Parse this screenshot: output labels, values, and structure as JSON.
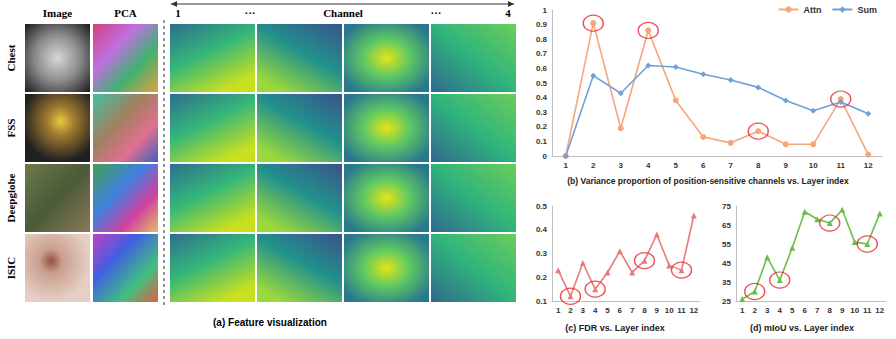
{
  "panel_a": {
    "columns": [
      "Image",
      "PCA"
    ],
    "channel_header": [
      "1",
      "···",
      "Channel",
      "···",
      "4"
    ],
    "rows": [
      "Chest",
      "FSS",
      "Deepglobe",
      "ISIC"
    ],
    "caption": "(a) Feature visualization"
  },
  "chart_data": [
    {
      "type": "line",
      "title": "(b) Variance proportion of position-sensitive channels vs. Layer index",
      "categories": [
        1,
        2,
        3,
        4,
        5,
        6,
        7,
        8,
        9,
        10,
        11,
        12
      ],
      "series": [
        {
          "name": "Attn",
          "color": "#f4a77a",
          "marker": "circle",
          "values": [
            0,
            0.91,
            0.19,
            0.86,
            0.38,
            0.13,
            0.09,
            0.17,
            0.08,
            0.08,
            0.39,
            0.01
          ],
          "circled": [
            2,
            4,
            8,
            11
          ]
        },
        {
          "name": "Sum",
          "color": "#6fa0d8",
          "marker": "diamond",
          "values": [
            0,
            0.55,
            0.43,
            0.62,
            0.61,
            0.56,
            0.52,
            0.47,
            0.38,
            0.31,
            0.37,
            0.29
          ]
        }
      ],
      "ylim": [
        0,
        1
      ],
      "yticks": [
        0,
        0.1,
        0.2,
        0.3,
        0.4,
        0.5,
        0.6,
        0.7,
        0.8,
        0.9,
        1
      ],
      "grid": false,
      "legend": "upper right"
    },
    {
      "type": "line",
      "title": "(c) FDR vs. Layer index",
      "categories": [
        1,
        2,
        3,
        4,
        5,
        6,
        7,
        8,
        9,
        10,
        11,
        12
      ],
      "values": [
        0.23,
        0.12,
        0.26,
        0.15,
        0.22,
        0.31,
        0.22,
        0.27,
        0.38,
        0.25,
        0.23,
        0.46
      ],
      "color": "#e9797a",
      "marker": "triangle",
      "circled": [
        2,
        4,
        8,
        11
      ],
      "ylim": [
        0.1,
        0.5
      ],
      "yticks": [
        0.1,
        0.2,
        0.3,
        0.4,
        0.5
      ],
      "grid": false
    },
    {
      "type": "line",
      "title": "(d) mIoU vs. Layer index",
      "categories": [
        1,
        2,
        3,
        4,
        5,
        6,
        7,
        8,
        9,
        10,
        11,
        12
      ],
      "values": [
        26,
        30,
        48,
        36,
        53,
        72,
        68,
        66,
        73,
        56,
        55,
        71
      ],
      "color": "#6abf4b",
      "marker": "triangle",
      "circled": [
        2,
        4,
        8,
        11
      ],
      "ylim": [
        25,
        75
      ],
      "yticks": [
        25,
        35,
        45,
        55,
        65,
        75
      ],
      "grid": false
    }
  ]
}
